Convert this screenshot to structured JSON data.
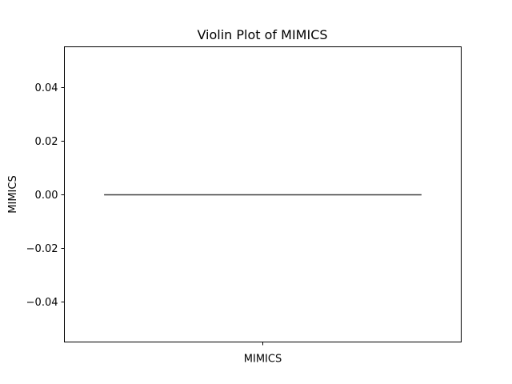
{
  "chart_data": {
    "type": "violin",
    "title": "Violin Plot of MIMICS",
    "xlabel": "",
    "ylabel": "MIMICS",
    "categories": [
      "MIMICS"
    ],
    "series": [
      {
        "name": "MIMICS",
        "values": [
          0.0
        ],
        "median": 0.0
      }
    ],
    "ylim": [
      -0.055,
      0.055
    ],
    "yticks": [
      -0.04,
      -0.02,
      0.0,
      0.02,
      0.04
    ],
    "ytick_labels": [
      "−0.04",
      "−0.02",
      "0.00",
      "0.02",
      "0.04"
    ],
    "grid": false,
    "colors": {
      "median_line": "#3f3f3f",
      "axes": "#000000"
    }
  }
}
